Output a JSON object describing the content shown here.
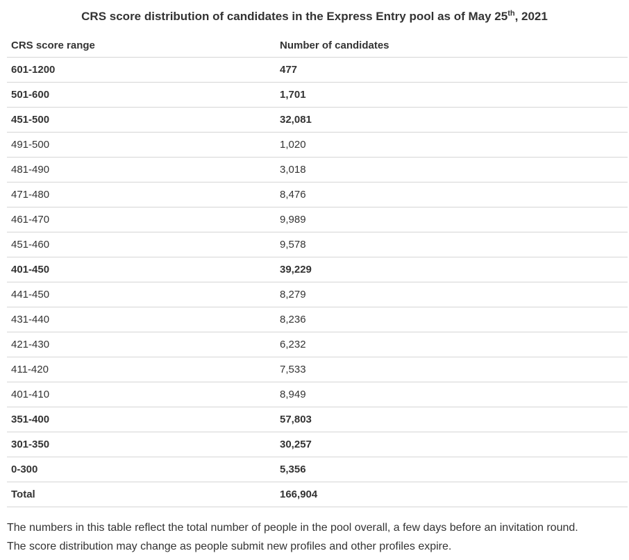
{
  "title": {
    "prefix": "CRS score distribution of candidates in the Express Entry pool as of May 25",
    "superscript": "th",
    "suffix": ", 2021"
  },
  "table": {
    "headers": [
      "CRS score range",
      "Number of candidates"
    ],
    "rows": [
      {
        "range": "601-1200",
        "count": "477",
        "bold": true
      },
      {
        "range": "501-600",
        "count": "1,701",
        "bold": true
      },
      {
        "range": "451-500",
        "count": "32,081",
        "bold": true
      },
      {
        "range": "491-500",
        "count": "1,020",
        "bold": false
      },
      {
        "range": "481-490",
        "count": "3,018",
        "bold": false
      },
      {
        "range": "471-480",
        "count": "8,476",
        "bold": false
      },
      {
        "range": "461-470",
        "count": "9,989",
        "bold": false
      },
      {
        "range": "451-460",
        "count": "9,578",
        "bold": false
      },
      {
        "range": "401-450",
        "count": "39,229",
        "bold": true
      },
      {
        "range": "441-450",
        "count": "8,279",
        "bold": false
      },
      {
        "range": "431-440",
        "count": "8,236",
        "bold": false
      },
      {
        "range": "421-430",
        "count": "6,232",
        "bold": false
      },
      {
        "range": "411-420",
        "count": "7,533",
        "bold": false
      },
      {
        "range": "401-410",
        "count": "8,949",
        "bold": false
      },
      {
        "range": "351-400",
        "count": "57,803",
        "bold": true
      },
      {
        "range": "301-350",
        "count": "30,257",
        "bold": true
      },
      {
        "range": "0-300",
        "count": "5,356",
        "bold": true
      },
      {
        "range": "Total",
        "count": "166,904",
        "bold": true
      }
    ]
  },
  "footer": {
    "lines": [
      "The numbers in this table reflect the total number of people in the pool overall, a few days before an invitation round.",
      "The score distribution may change as people submit new profiles and other profiles expire."
    ]
  },
  "colors": {
    "text": "#333333",
    "border": "#d5d5d5",
    "background": "#ffffff"
  },
  "chart_data": {
    "type": "table",
    "title": "CRS score distribution of candidates in the Express Entry pool as of May 25th, 2021",
    "columns": [
      "CRS score range",
      "Number of candidates"
    ],
    "rows": [
      [
        "601-1200",
        477
      ],
      [
        "501-600",
        1701
      ],
      [
        "451-500",
        32081
      ],
      [
        "491-500",
        1020
      ],
      [
        "481-490",
        3018
      ],
      [
        "471-480",
        8476
      ],
      [
        "461-470",
        9989
      ],
      [
        "451-460",
        9578
      ],
      [
        "401-450",
        39229
      ],
      [
        "441-450",
        8279
      ],
      [
        "431-440",
        8236
      ],
      [
        "421-430",
        6232
      ],
      [
        "411-420",
        7533
      ],
      [
        "401-410",
        8949
      ],
      [
        "351-400",
        57803
      ],
      [
        "301-350",
        30257
      ],
      [
        "0-300",
        5356
      ],
      [
        "Total",
        166904
      ]
    ],
    "group_rows_bold": [
      "601-1200",
      "501-600",
      "451-500",
      "401-450",
      "351-400",
      "301-350",
      "0-300",
      "Total"
    ],
    "total": 166904
  }
}
